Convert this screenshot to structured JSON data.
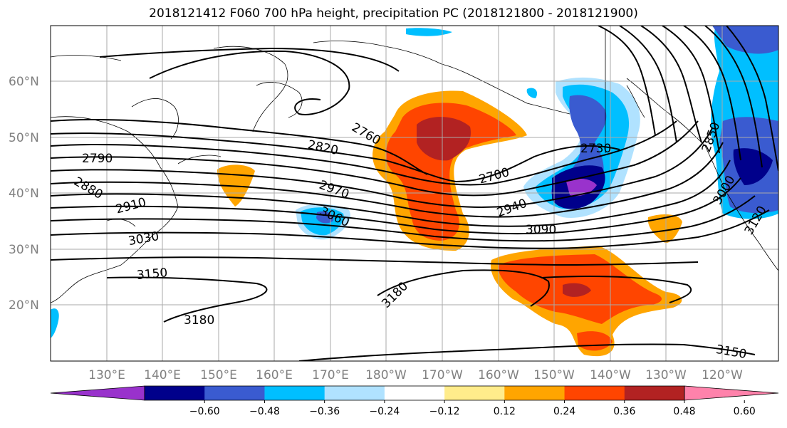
{
  "title": "2018121412 F060 700 hPa height, precipitation PC (2018121800 - 2018121900)",
  "lat_labels": [
    "60°N",
    "50°N",
    "40°N",
    "30°N",
    "20°N"
  ],
  "lon_labels": [
    "130°E",
    "140°E",
    "150°E",
    "160°E",
    "170°E",
    "180°W",
    "170°W",
    "160°W",
    "150°W",
    "140°W",
    "130°W",
    "120°W"
  ],
  "contour_labels": [
    "2790",
    "2820",
    "2760",
    "2730",
    "2700",
    "2880",
    "2910",
    "2970",
    "2940",
    "3030",
    "3060",
    "3090",
    "3150",
    "3180",
    "3180",
    "3150",
    "2850",
    "3000",
    "3120"
  ],
  "colorbar": {
    "colors": [
      "#9932cc",
      "#00008b",
      "#3a5bd0",
      "#00bfff",
      "#b0e2ff",
      "#ffffff",
      "#ffec8b",
      "#ffa500",
      "#ff4500",
      "#b22222",
      "#ff82ab"
    ],
    "tick_labels": [
      "−0.60",
      "−0.48",
      "−0.36",
      "−0.24",
      "−0.12",
      "0.12",
      "0.24",
      "0.36",
      "0.48",
      "0.60"
    ]
  }
}
